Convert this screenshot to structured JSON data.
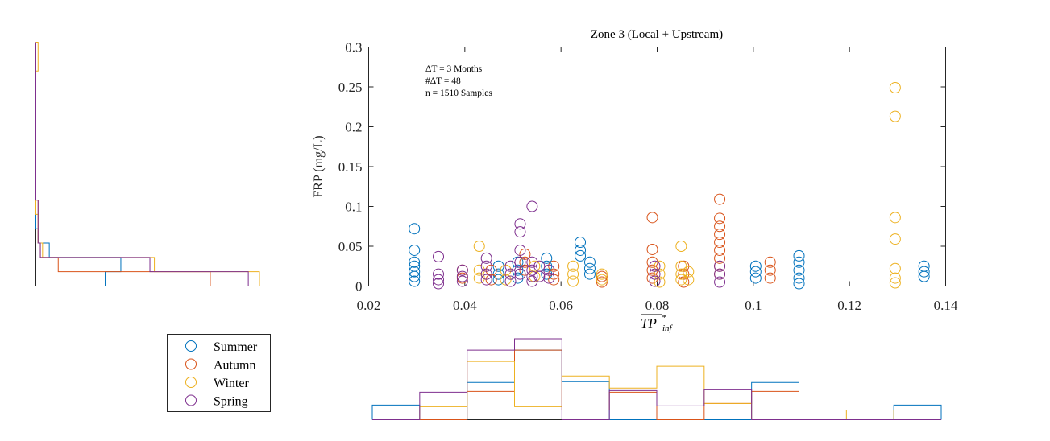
{
  "chart_data": {
    "type": "scatter",
    "title": "Zone 3 (Local + Upstream)",
    "xlabel": "TP*inf",
    "xlabel_main": "TP",
    "xlabel_sup": "*",
    "xlabel_sub": "inf",
    "ylabel": "FRP (mg/L)",
    "xlim": [
      0.02,
      0.14
    ],
    "ylim": [
      0,
      0.3
    ],
    "xticks": [
      0.02,
      0.04,
      0.06,
      0.08,
      0.1,
      0.12,
      0.14
    ],
    "xtick_labels": [
      "0.02",
      "0.04",
      "0.06",
      "0.08",
      "0.1",
      "0.12",
      "0.14"
    ],
    "yticks": [
      0,
      0.05,
      0.1,
      0.15,
      0.2,
      0.25,
      0.3
    ],
    "ytick_labels": [
      "0",
      "0.05",
      "0.1",
      "0.15",
      "0.2",
      "0.25",
      "0.3"
    ],
    "annotations": [
      "ΔT = 3 Months",
      "#ΔT = 48",
      "n = 1510 Samples"
    ],
    "legend_position": "bottom-left, outside",
    "grid": false,
    "series": [
      {
        "name": "Summer",
        "color": "#0072BD",
        "points": [
          [
            0.0295,
            0.072
          ],
          [
            0.0295,
            0.045
          ],
          [
            0.0295,
            0.03
          ],
          [
            0.0295,
            0.025
          ],
          [
            0.0295,
            0.018
          ],
          [
            0.0295,
            0.012
          ],
          [
            0.0295,
            0.006
          ],
          [
            0.047,
            0.025
          ],
          [
            0.047,
            0.015
          ],
          [
            0.047,
            0.008
          ],
          [
            0.051,
            0.03
          ],
          [
            0.051,
            0.02
          ],
          [
            0.051,
            0.01
          ],
          [
            0.057,
            0.035
          ],
          [
            0.057,
            0.025
          ],
          [
            0.057,
            0.015
          ],
          [
            0.064,
            0.055
          ],
          [
            0.064,
            0.045
          ],
          [
            0.064,
            0.038
          ],
          [
            0.066,
            0.03
          ],
          [
            0.066,
            0.022
          ],
          [
            0.066,
            0.015
          ],
          [
            0.1005,
            0.025
          ],
          [
            0.1005,
            0.018
          ],
          [
            0.1005,
            0.01
          ],
          [
            0.1095,
            0.038
          ],
          [
            0.1095,
            0.03
          ],
          [
            0.1095,
            0.02
          ],
          [
            0.1095,
            0.01
          ],
          [
            0.1095,
            0.003
          ],
          [
            0.1355,
            0.025
          ],
          [
            0.1355,
            0.018
          ],
          [
            0.1355,
            0.012
          ]
        ]
      },
      {
        "name": "Autumn",
        "color": "#D95319",
        "points": [
          [
            0.0395,
            0.02
          ],
          [
            0.0395,
            0.01
          ],
          [
            0.0455,
            0.02
          ],
          [
            0.0455,
            0.008
          ],
          [
            0.0525,
            0.04
          ],
          [
            0.0525,
            0.03
          ],
          [
            0.0525,
            0.02
          ],
          [
            0.0585,
            0.025
          ],
          [
            0.0585,
            0.015
          ],
          [
            0.0585,
            0.008
          ],
          [
            0.0685,
            0.012
          ],
          [
            0.0685,
            0.005
          ],
          [
            0.079,
            0.086
          ],
          [
            0.079,
            0.046
          ],
          [
            0.079,
            0.03
          ],
          [
            0.079,
            0.02
          ],
          [
            0.079,
            0.01
          ],
          [
            0.0855,
            0.025
          ],
          [
            0.0855,
            0.015
          ],
          [
            0.0855,
            0.005
          ],
          [
            0.093,
            0.109
          ],
          [
            0.093,
            0.085
          ],
          [
            0.093,
            0.075
          ],
          [
            0.093,
            0.065
          ],
          [
            0.093,
            0.055
          ],
          [
            0.093,
            0.045
          ],
          [
            0.093,
            0.035
          ],
          [
            0.093,
            0.025
          ],
          [
            0.093,
            0.015
          ],
          [
            0.1035,
            0.03
          ],
          [
            0.1035,
            0.02
          ],
          [
            0.1035,
            0.01
          ]
        ]
      },
      {
        "name": "Winter",
        "color": "#EDB120",
        "points": [
          [
            0.043,
            0.05
          ],
          [
            0.043,
            0.02
          ],
          [
            0.043,
            0.01
          ],
          [
            0.0485,
            0.02
          ],
          [
            0.0485,
            0.008
          ],
          [
            0.0545,
            0.025
          ],
          [
            0.0545,
            0.012
          ],
          [
            0.0625,
            0.025
          ],
          [
            0.0625,
            0.015
          ],
          [
            0.0625,
            0.006
          ],
          [
            0.0685,
            0.015
          ],
          [
            0.0685,
            0.008
          ],
          [
            0.0805,
            0.025
          ],
          [
            0.0805,
            0.015
          ],
          [
            0.0805,
            0.005
          ],
          [
            0.085,
            0.05
          ],
          [
            0.085,
            0.025
          ],
          [
            0.085,
            0.015
          ],
          [
            0.085,
            0.008
          ],
          [
            0.0865,
            0.018
          ],
          [
            0.0865,
            0.008
          ],
          [
            0.1295,
            0.249
          ],
          [
            0.1295,
            0.213
          ],
          [
            0.1295,
            0.086
          ],
          [
            0.1295,
            0.059
          ],
          [
            0.1295,
            0.022
          ],
          [
            0.1295,
            0.01
          ],
          [
            0.1295,
            0.004
          ]
        ]
      },
      {
        "name": "Spring",
        "color": "#7E2F8E",
        "points": [
          [
            0.0345,
            0.037
          ],
          [
            0.0345,
            0.015
          ],
          [
            0.0345,
            0.008
          ],
          [
            0.0345,
            0.003
          ],
          [
            0.0395,
            0.02
          ],
          [
            0.0395,
            0.012
          ],
          [
            0.0395,
            0.006
          ],
          [
            0.0445,
            0.035
          ],
          [
            0.0445,
            0.025
          ],
          [
            0.0445,
            0.015
          ],
          [
            0.0445,
            0.008
          ],
          [
            0.0495,
            0.025
          ],
          [
            0.0495,
            0.015
          ],
          [
            0.0495,
            0.006
          ],
          [
            0.0515,
            0.078
          ],
          [
            0.0515,
            0.068
          ],
          [
            0.0515,
            0.045
          ],
          [
            0.0515,
            0.03
          ],
          [
            0.0515,
            0.015
          ],
          [
            0.054,
            0.1
          ],
          [
            0.054,
            0.03
          ],
          [
            0.054,
            0.02
          ],
          [
            0.054,
            0.012
          ],
          [
            0.054,
            0.006
          ],
          [
            0.0555,
            0.025
          ],
          [
            0.0555,
            0.012
          ],
          [
            0.0575,
            0.02
          ],
          [
            0.0575,
            0.01
          ],
          [
            0.0795,
            0.025
          ],
          [
            0.0795,
            0.015
          ],
          [
            0.0795,
            0.006
          ],
          [
            0.093,
            0.025
          ],
          [
            0.093,
            0.015
          ],
          [
            0.093,
            0.005
          ]
        ]
      }
    ],
    "x_histogram": {
      "bin_edges": [
        0.021,
        0.031,
        0.041,
        0.051,
        0.061,
        0.071,
        0.081,
        0.091,
        0.101,
        0.111,
        0.121,
        0.131,
        0.141
      ],
      "ymax": 1.0,
      "counts": {
        "Summer": [
          0.18,
          0,
          0.46,
          0.86,
          0.47,
          0,
          0,
          0,
          0.46,
          0,
          0,
          0.18
        ],
        "Autumn": [
          0,
          0,
          0.35,
          0.86,
          0.12,
          0.34,
          0,
          0.2,
          0.35,
          0,
          0,
          0
        ],
        "Winter": [
          0,
          0.16,
          0.72,
          0.16,
          0.54,
          0.39,
          0.66,
          0.2,
          0,
          0,
          0.12,
          0
        ],
        "Spring": [
          0,
          0.34,
          0.86,
          1.0,
          0,
          0.36,
          0.17,
          0.37,
          0,
          0,
          0,
          0
        ]
      }
    },
    "y_histogram": {
      "bin_edges": [
        0,
        0.018,
        0.036,
        0.054,
        0.072,
        0.09,
        0.108,
        0.126,
        0.144,
        0.162,
        0.18,
        0.198,
        0.216,
        0.234,
        0.252,
        0.27,
        0.288,
        0.306
      ],
      "xmax": 1.0,
      "counts": {
        "Summer": [
          0.31,
          0.38,
          0.06,
          0.01,
          0,
          0,
          0,
          0,
          0,
          0,
          0,
          0,
          0,
          0,
          0,
          0,
          0
        ],
        "Autumn": [
          0.78,
          0.1,
          0.02,
          0.01,
          0.01,
          0.01,
          0,
          0,
          0,
          0,
          0,
          0,
          0,
          0,
          0,
          0,
          0
        ],
        "Winter": [
          1.0,
          0.53,
          0.03,
          0.01,
          0.01,
          0,
          0,
          0,
          0,
          0,
          0,
          0,
          0,
          0,
          0,
          0.01,
          0.01
        ],
        "Spring": [
          0.95,
          0.51,
          0.02,
          0.01,
          0.01,
          0.01,
          0,
          0,
          0,
          0,
          0,
          0,
          0,
          0,
          0,
          0,
          0
        ]
      }
    }
  }
}
